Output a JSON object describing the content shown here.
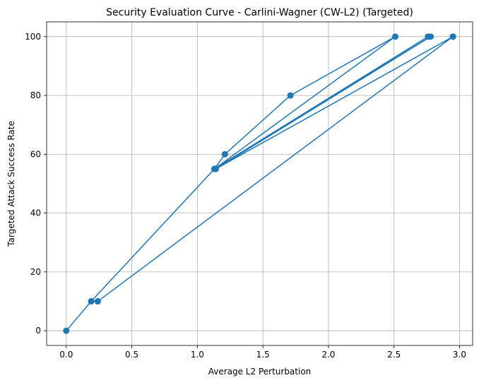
{
  "chart_data": {
    "type": "line",
    "title": "Security Evaluation Curve - Carlini-Wagner (CW-L2) (Targeted)",
    "xlabel": "Average L2 Perturbation",
    "ylabel": "Targeted Attack Success Rate",
    "xlim": [
      -0.15,
      3.1
    ],
    "ylim": [
      -5,
      105
    ],
    "xticks": [
      0.0,
      0.5,
      1.0,
      1.5,
      2.0,
      2.5,
      3.0
    ],
    "xtick_labels": [
      "0.0",
      "0.5",
      "1.0",
      "1.5",
      "2.0",
      "2.5",
      "3.0"
    ],
    "yticks": [
      0,
      20,
      40,
      60,
      80,
      100
    ],
    "ytick_labels": [
      "0",
      "20",
      "40",
      "60",
      "80",
      "100"
    ],
    "grid": true,
    "series": [
      {
        "color": "#1f77b4",
        "marker": "circle",
        "x": [
          0.0,
          0.19,
          0.24,
          0.19,
          1.13,
          1.21,
          1.71,
          2.51,
          1.13,
          2.76,
          1.14,
          2.78,
          1.14,
          2.95,
          0.24,
          2.95
        ],
        "y": [
          0,
          10,
          10,
          10,
          55,
          60,
          80,
          100,
          55,
          100,
          55,
          100,
          55,
          100,
          10,
          100
        ]
      }
    ]
  }
}
